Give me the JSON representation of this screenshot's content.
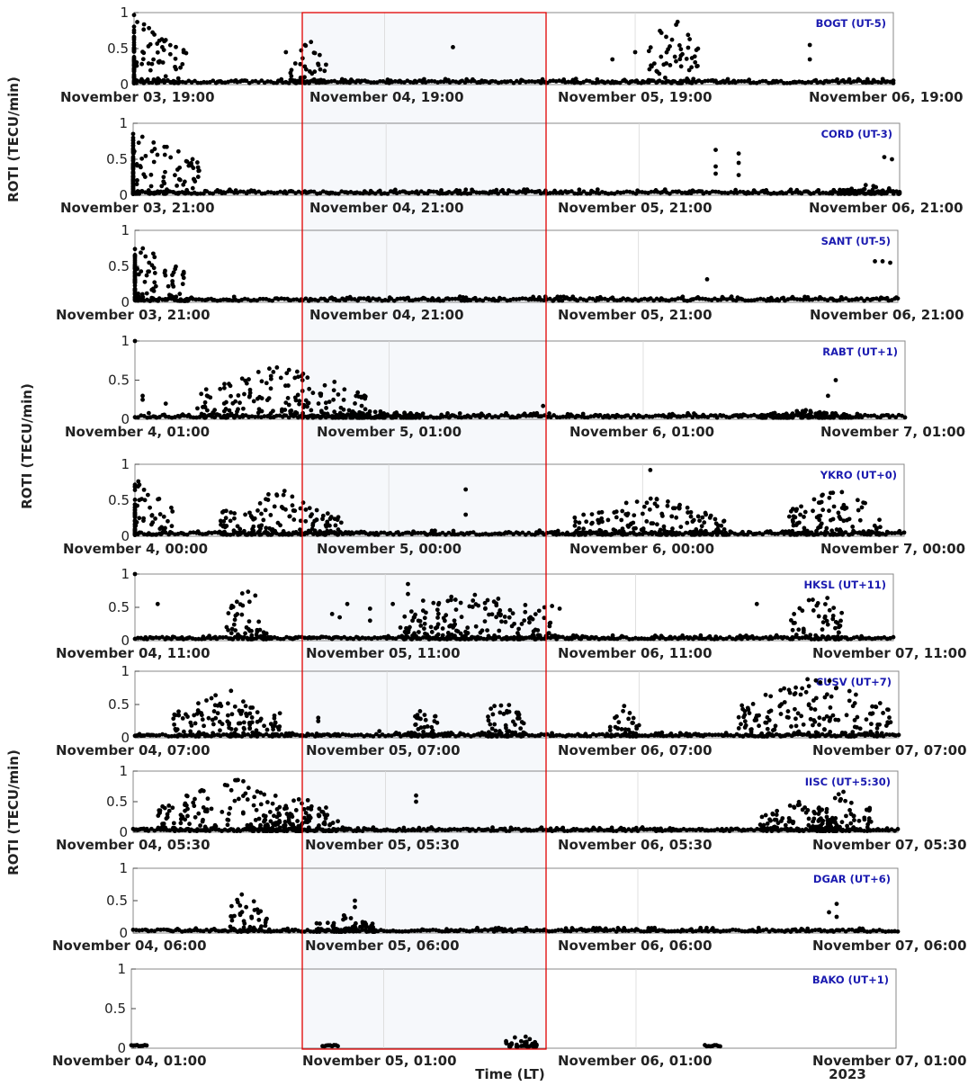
{
  "figure": {
    "ylabel": "ROTI (TECU/min)",
    "xlabel": "Time (LT)",
    "year": "2023",
    "colors": {
      "marker": "#000000",
      "station_label": "#1a1ab0",
      "highlight_box": "#e00000",
      "highlight_fill": "#dfe6f0"
    }
  },
  "chart_data": [
    {
      "type": "scatter",
      "station": "BOGT (UT-5)",
      "ylim": [
        0,
        1
      ],
      "yticks": [
        "0",
        "0.5",
        "1"
      ],
      "xtick_labels": [
        "November 03, 19:00",
        "November 04, 19:00",
        "November 05, 19:00",
        "November 06, 19:00"
      ],
      "storm_bursts": [
        [
          0.0,
          0.07,
          1.0
        ],
        [
          0.23,
          0.025,
          0.65
        ],
        [
          0.71,
          0.035,
          1.0
        ]
      ],
      "isolated_points": [
        [
          0.42,
          0.52
        ],
        [
          0.63,
          0.35
        ],
        [
          0.66,
          0.45
        ],
        [
          0.89,
          0.55
        ],
        [
          0.89,
          0.35
        ],
        [
          0.2,
          0.45
        ]
      ]
    },
    {
      "type": "scatter",
      "station": "CORD (UT-3)",
      "ylim": [
        0,
        1
      ],
      "yticks": [
        "0",
        "0.5",
        "1"
      ],
      "xtick_labels": [
        "November 03, 21:00",
        "November 04, 21:00",
        "November 05, 21:00",
        "November 06, 21:00"
      ],
      "storm_bursts": [
        [
          0.0,
          0.09,
          0.95
        ],
        [
          0.96,
          0.04,
          0.15
        ]
      ],
      "isolated_points": [
        [
          0.76,
          0.63
        ],
        [
          0.76,
          0.4
        ],
        [
          0.76,
          0.3
        ],
        [
          0.79,
          0.58
        ],
        [
          0.79,
          0.45
        ],
        [
          0.79,
          0.28
        ],
        [
          0.98,
          0.53
        ],
        [
          0.99,
          0.5
        ]
      ]
    },
    {
      "type": "scatter",
      "station": "SANT (UT-5)",
      "ylim": [
        0,
        1
      ],
      "yticks": [
        "0",
        "0.5",
        "1"
      ],
      "xtick_labels": [
        "November 03, 21:00",
        "November 04, 21:00",
        "November 05, 21:00",
        "November 06, 21:00"
      ],
      "storm_bursts": [
        [
          0.0,
          0.07,
          0.85
        ]
      ],
      "isolated_points": [
        [
          0.75,
          0.32
        ],
        [
          0.97,
          0.57
        ],
        [
          0.98,
          0.57
        ],
        [
          0.99,
          0.55
        ]
      ]
    },
    {
      "type": "scatter",
      "station": "RABT (UT+1)",
      "ylim": [
        0,
        1
      ],
      "yticks": [
        "0",
        "0.5",
        "1"
      ],
      "xtick_labels": [
        "November 4, 01:00",
        "November 5, 01:00",
        "November 6, 01:00",
        "November 7, 01:00"
      ],
      "storm_bursts": [
        [
          0.19,
          0.11,
          0.7
        ],
        [
          0.32,
          0.05,
          0.12
        ],
        [
          0.87,
          0.06,
          0.12
        ]
      ],
      "isolated_points": [
        [
          0.0,
          1.0
        ],
        [
          0.01,
          0.3
        ],
        [
          0.01,
          0.25
        ],
        [
          0.04,
          0.2
        ],
        [
          0.53,
          0.17
        ],
        [
          0.9,
          0.3
        ],
        [
          0.91,
          0.5
        ]
      ]
    },
    {
      "type": "scatter",
      "station": "YKRO (UT+0)",
      "ylim": [
        0,
        1
      ],
      "yticks": [
        "0",
        "0.5",
        "1"
      ],
      "xtick_labels": [
        "November 4, 00:00",
        "November 5, 00:00",
        "November 6, 00:00",
        "November 7, 00:00"
      ],
      "storm_bursts": [
        [
          0.0,
          0.05,
          0.8
        ],
        [
          0.19,
          0.08,
          0.65
        ],
        [
          0.67,
          0.1,
          0.55
        ],
        [
          0.91,
          0.06,
          0.7
        ]
      ],
      "isolated_points": [
        [
          0.43,
          0.65
        ],
        [
          0.43,
          0.3
        ],
        [
          0.67,
          0.92
        ]
      ]
    },
    {
      "type": "scatter",
      "station": "HKSL (UT+11)",
      "ylim": [
        0,
        1
      ],
      "yticks": [
        "0",
        "0.5",
        "1"
      ],
      "xtick_labels": [
        "November 04, 11:00",
        "November 05, 11:00",
        "November 06, 11:00",
        "November 07, 11:00"
      ],
      "storm_bursts": [
        [
          0.15,
          0.03,
          0.85
        ],
        [
          0.45,
          0.1,
          0.8
        ],
        [
          0.9,
          0.035,
          0.8
        ]
      ],
      "isolated_points": [
        [
          0.0,
          1.0
        ],
        [
          0.03,
          0.55
        ],
        [
          0.26,
          0.4
        ],
        [
          0.27,
          0.35
        ],
        [
          0.28,
          0.55
        ],
        [
          0.31,
          0.48
        ],
        [
          0.31,
          0.3
        ],
        [
          0.34,
          0.55
        ],
        [
          0.36,
          0.85
        ],
        [
          0.36,
          0.7
        ],
        [
          0.38,
          0.6
        ],
        [
          0.38,
          0.45
        ],
        [
          0.54,
          0.5
        ],
        [
          0.55,
          0.52
        ],
        [
          0.56,
          0.48
        ],
        [
          0.82,
          0.55
        ],
        [
          0.88,
          0.45
        ]
      ]
    },
    {
      "type": "scatter",
      "station": "CUSV (UT+7)",
      "ylim": [
        0,
        1
      ],
      "yticks": [
        "0",
        "0.5",
        "1"
      ],
      "xtick_labels": [
        "November 04, 07:00",
        "November 05, 07:00",
        "November 06, 07:00",
        "November 07, 07:00"
      ],
      "storm_bursts": [
        [
          0.12,
          0.07,
          0.75
        ],
        [
          0.38,
          0.02,
          0.5
        ],
        [
          0.48,
          0.03,
          0.6
        ],
        [
          0.64,
          0.02,
          0.5
        ],
        [
          0.89,
          0.1,
          0.95
        ]
      ],
      "isolated_points": [
        [
          0.24,
          0.3
        ],
        [
          0.24,
          0.25
        ],
        [
          0.32,
          0.1
        ]
      ]
    },
    {
      "type": "scatter",
      "station": "IISC (UT+5:30)",
      "ylim": [
        0,
        1
      ],
      "yticks": [
        "0",
        "0.5",
        "1"
      ],
      "xtick_labels": [
        "November 04, 05:30",
        "November 05, 05:30",
        "November 06, 05:30",
        "November 07, 05:30"
      ],
      "storm_bursts": [
        [
          0.13,
          0.1,
          0.9
        ],
        [
          0.22,
          0.05,
          0.6
        ],
        [
          0.87,
          0.05,
          0.55
        ],
        [
          0.93,
          0.04,
          0.7
        ]
      ],
      "isolated_points": [
        [
          0.37,
          0.6
        ],
        [
          0.37,
          0.5
        ]
      ]
    },
    {
      "type": "scatter",
      "station": "DGAR (UT+6)",
      "ylim": [
        0,
        1
      ],
      "yticks": [
        "0",
        "0.5",
        "1"
      ],
      "xtick_labels": [
        "November 04, 06:00",
        "November 05, 06:00",
        "November 06, 06:00",
        "November 07, 06:00"
      ],
      "storm_bursts": [
        [
          0.15,
          0.025,
          0.75
        ],
        [
          0.28,
          0.04,
          0.3
        ]
      ],
      "isolated_points": [
        [
          0.14,
          0.28
        ],
        [
          0.24,
          0.15
        ],
        [
          0.29,
          0.5
        ],
        [
          0.29,
          0.4
        ],
        [
          0.91,
          0.32
        ],
        [
          0.92,
          0.45
        ],
        [
          0.92,
          0.25
        ]
      ]
    },
    {
      "type": "scatter",
      "station": "BAKO (UT+1)",
      "ylim": [
        0,
        1
      ],
      "yticks": [
        "0",
        "0.5",
        "1"
      ],
      "xtick_labels": [
        "November 04, 01:00",
        "November 05, 01:00",
        "November 06, 01:00",
        "November 07, 01:00"
      ],
      "sparse_segments": [
        [
          0.0,
          0.02
        ],
        [
          0.25,
          0.27
        ],
        [
          0.51,
          0.53
        ],
        [
          0.75,
          0.77
        ]
      ],
      "storm_bursts": [
        [
          0.51,
          0.02,
          0.18
        ]
      ],
      "isolated_points": []
    }
  ]
}
